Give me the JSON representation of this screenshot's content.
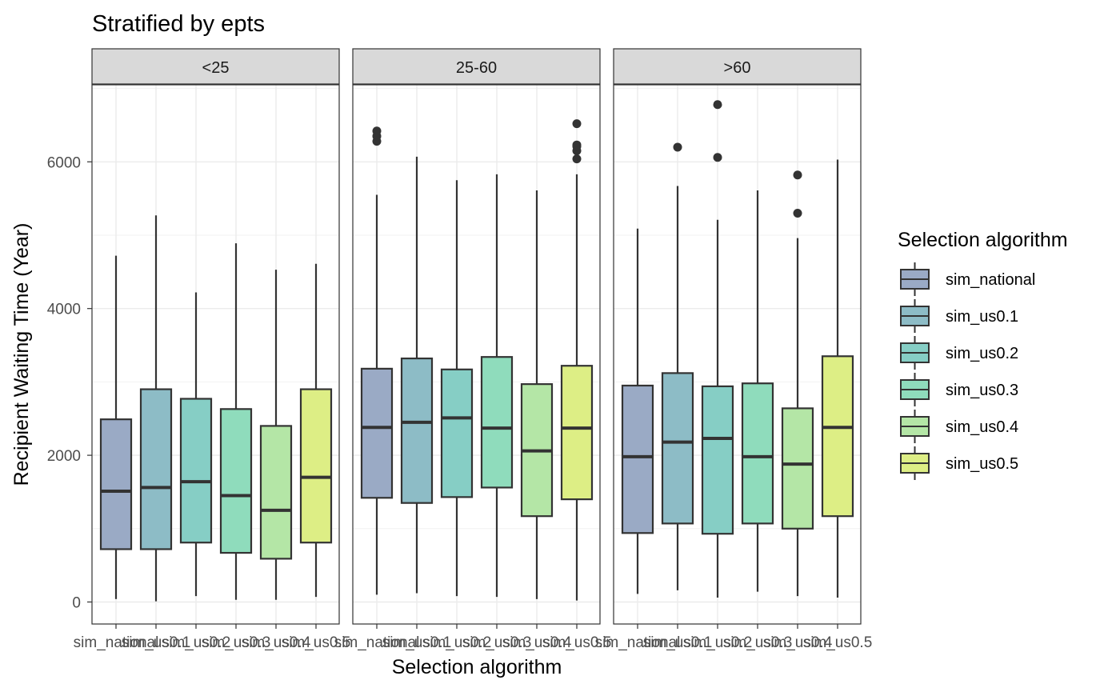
{
  "chart_data": {
    "type": "boxplot",
    "title": "Stratified by epts",
    "xlabel": "Selection algorithm",
    "ylabel": "Recipient Waiting Time (Year)",
    "ylim": [
      -300,
      7050
    ],
    "yticks": [
      0,
      2000,
      4000,
      6000
    ],
    "grid": true,
    "categories": [
      "sim_national",
      "sim_us0.1",
      "sim_us0.2",
      "sim_us0.3",
      "sim_us0.4",
      "sim_us0.5"
    ],
    "colors": [
      "#9AAAC5",
      "#8DBCC6",
      "#86CEC5",
      "#8FDCBC",
      "#B4E6A6",
      "#DDEE85"
    ],
    "legend": {
      "title": "Selection algorithm",
      "position": "right",
      "entries": [
        "sim_national",
        "sim_us0.1",
        "sim_us0.2",
        "sim_us0.3",
        "sim_us0.4",
        "sim_us0.5"
      ]
    },
    "facets": [
      {
        "label": "<25",
        "boxes": [
          {
            "min": 40,
            "q1": 720,
            "median": 1510,
            "q3": 2490,
            "max": 4720,
            "outliers": []
          },
          {
            "min": 10,
            "q1": 720,
            "median": 1560,
            "q3": 2900,
            "max": 5270,
            "outliers": []
          },
          {
            "min": 80,
            "q1": 810,
            "median": 1640,
            "q3": 2770,
            "max": 4220,
            "outliers": []
          },
          {
            "min": 30,
            "q1": 670,
            "median": 1450,
            "q3": 2630,
            "max": 4890,
            "outliers": []
          },
          {
            "min": 30,
            "q1": 590,
            "median": 1250,
            "q3": 2400,
            "max": 4530,
            "outliers": []
          },
          {
            "min": 70,
            "q1": 810,
            "median": 1700,
            "q3": 2900,
            "max": 4610,
            "outliers": []
          }
        ]
      },
      {
        "label": "25-60",
        "boxes": [
          {
            "min": 100,
            "q1": 1420,
            "median": 2380,
            "q3": 3180,
            "max": 5550,
            "outliers": [
              6280,
              6350,
              6420
            ]
          },
          {
            "min": 120,
            "q1": 1350,
            "median": 2450,
            "q3": 3320,
            "max": 6070,
            "outliers": []
          },
          {
            "min": 80,
            "q1": 1430,
            "median": 2510,
            "q3": 3170,
            "max": 5750,
            "outliers": []
          },
          {
            "min": 70,
            "q1": 1560,
            "median": 2370,
            "q3": 3340,
            "max": 5830,
            "outliers": []
          },
          {
            "min": 40,
            "q1": 1170,
            "median": 2060,
            "q3": 2970,
            "max": 5610,
            "outliers": []
          },
          {
            "min": 20,
            "q1": 1400,
            "median": 2370,
            "q3": 3220,
            "max": 5830,
            "outliers": [
              6040,
              6150,
              6210,
              6230,
              6520
            ]
          }
        ]
      },
      {
        "label": ">60",
        "boxes": [
          {
            "min": 110,
            "q1": 940,
            "median": 1980,
            "q3": 2950,
            "max": 5090,
            "outliers": []
          },
          {
            "min": 160,
            "q1": 1070,
            "median": 2180,
            "q3": 3120,
            "max": 5670,
            "outliers": [
              6200
            ]
          },
          {
            "min": 60,
            "q1": 930,
            "median": 2230,
            "q3": 2940,
            "max": 5210,
            "outliers": [
              6060,
              6780
            ]
          },
          {
            "min": 140,
            "q1": 1070,
            "median": 1980,
            "q3": 2980,
            "max": 5610,
            "outliers": []
          },
          {
            "min": 80,
            "q1": 1000,
            "median": 1880,
            "q3": 2640,
            "max": 4960,
            "outliers": [
              5300,
              5820
            ]
          },
          {
            "min": 60,
            "q1": 1170,
            "median": 2380,
            "q3": 3350,
            "max": 6030,
            "outliers": []
          }
        ]
      }
    ]
  }
}
